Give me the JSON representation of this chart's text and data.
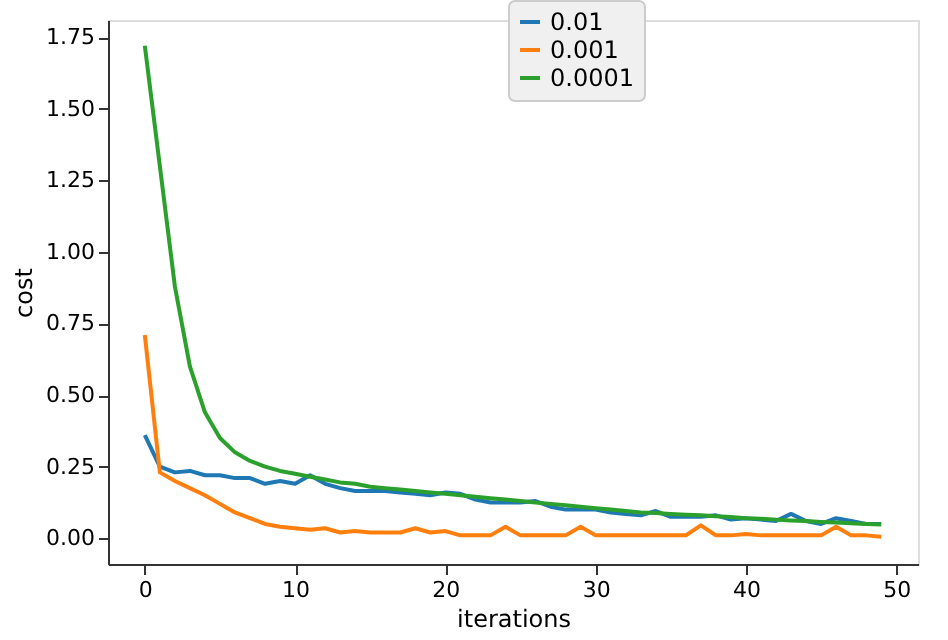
{
  "chart_data": {
    "type": "line",
    "xlabel": "iterations",
    "ylabel": "cost",
    "x": [
      0,
      1,
      2,
      3,
      4,
      5,
      6,
      7,
      8,
      9,
      10,
      11,
      12,
      13,
      14,
      15,
      16,
      17,
      18,
      19,
      20,
      21,
      22,
      23,
      24,
      25,
      26,
      27,
      28,
      29,
      30,
      31,
      32,
      33,
      34,
      35,
      36,
      37,
      38,
      39,
      40,
      41,
      42,
      43,
      44,
      45,
      46,
      47,
      48,
      49
    ],
    "series": [
      {
        "name": "0.01",
        "color": "#1f77b4",
        "values": [
          0.36,
          0.25,
          0.23,
          0.235,
          0.22,
          0.22,
          0.21,
          0.21,
          0.19,
          0.2,
          0.19,
          0.22,
          0.19,
          0.175,
          0.165,
          0.165,
          0.165,
          0.16,
          0.155,
          0.15,
          0.16,
          0.155,
          0.135,
          0.125,
          0.125,
          0.125,
          0.13,
          0.11,
          0.1,
          0.1,
          0.1,
          0.09,
          0.085,
          0.08,
          0.095,
          0.075,
          0.075,
          0.075,
          0.08,
          0.065,
          0.07,
          0.065,
          0.06,
          0.085,
          0.06,
          0.05,
          0.07,
          0.06,
          0.05,
          0.05
        ]
      },
      {
        "name": "0.001",
        "color": "#ff7f0e",
        "values": [
          0.71,
          0.23,
          0.2,
          0.175,
          0.15,
          0.12,
          0.09,
          0.07,
          0.05,
          0.04,
          0.035,
          0.03,
          0.035,
          0.02,
          0.025,
          0.02,
          0.02,
          0.02,
          0.035,
          0.02,
          0.025,
          0.01,
          0.01,
          0.01,
          0.04,
          0.01,
          0.01,
          0.01,
          0.01,
          0.04,
          0.01,
          0.01,
          0.01,
          0.01,
          0.01,
          0.01,
          0.01,
          0.045,
          0.01,
          0.01,
          0.015,
          0.01,
          0.01,
          0.01,
          0.01,
          0.01,
          0.04,
          0.01,
          0.01,
          0.005
        ]
      },
      {
        "name": "0.0001",
        "color": "#2ca02c",
        "values": [
          1.72,
          1.3,
          0.88,
          0.6,
          0.44,
          0.35,
          0.3,
          0.27,
          0.25,
          0.235,
          0.225,
          0.215,
          0.205,
          0.195,
          0.19,
          0.18,
          0.175,
          0.17,
          0.165,
          0.16,
          0.155,
          0.15,
          0.145,
          0.14,
          0.135,
          0.13,
          0.125,
          0.12,
          0.115,
          0.11,
          0.105,
          0.1,
          0.095,
          0.09,
          0.088,
          0.085,
          0.082,
          0.08,
          0.077,
          0.074,
          0.07,
          0.068,
          0.065,
          0.062,
          0.06,
          0.057,
          0.055,
          0.052,
          0.05,
          0.048
        ]
      }
    ],
    "xlim": [
      -2.45,
      51.45
    ],
    "xticks": [
      0,
      10,
      20,
      30,
      40,
      50
    ],
    "ylim": [
      -0.09,
      1.81
    ],
    "yticks": [
      {
        "value": 0,
        "label": "0.00"
      },
      {
        "value": 0.25,
        "label": "0.25"
      },
      {
        "value": 0.5,
        "label": "0.50"
      },
      {
        "value": 0.75,
        "label": "0.75"
      },
      {
        "value": 1,
        "label": "1.00"
      },
      {
        "value": 1.25,
        "label": "1.25"
      },
      {
        "value": 1.5,
        "label": "1.50"
      },
      {
        "value": 1.75,
        "label": "1.75"
      }
    ],
    "legend": "top",
    "grid": false,
    "marker": "none",
    "line_style": "solid"
  }
}
